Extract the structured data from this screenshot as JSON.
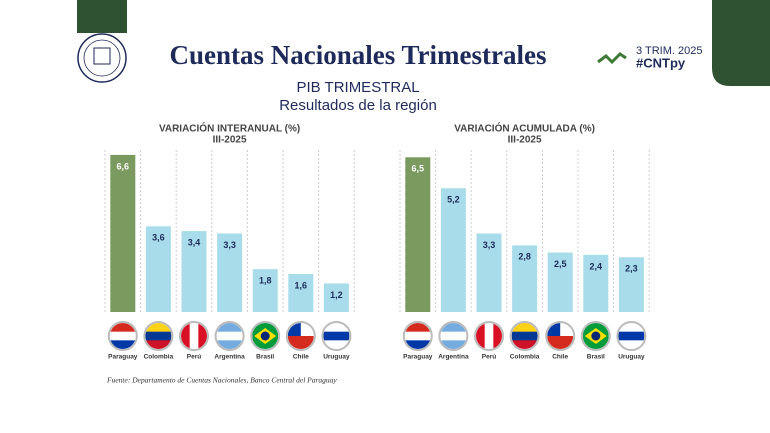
{
  "header": {
    "title": "Cuentas Nacionales Trimestrales",
    "subtitle": "PIB TRIMESTRAL",
    "subtitle2": "Resultados de la región",
    "period": "3 TRIM. 2025",
    "hashtag": "#CNTpy"
  },
  "source": "Fuente: Departamento de Cuentas Nacionales, Banco Central del Paraguay",
  "chart_data": [
    {
      "type": "bar",
      "title": "VARIACIÓN INTERANUAL (%)",
      "subtitle": "III-2025",
      "categories": [
        "Paraguay",
        "Colombia",
        "Perú",
        "Argentina",
        "Brasil",
        "Chile",
        "Uruguay"
      ],
      "values": [
        6.6,
        3.6,
        3.4,
        3.3,
        1.8,
        1.6,
        1.2
      ],
      "value_labels": [
        "6,6",
        "3,6",
        "3,4",
        "3,3",
        "1,8",
        "1,6",
        "1,2"
      ],
      "colors": [
        "#7a9a5f",
        "#a9dcea",
        "#a9dcea",
        "#a9dcea",
        "#a9dcea",
        "#a9dcea",
        "#a9dcea"
      ]
    },
    {
      "type": "bar",
      "title": "VARIACIÓN ACUMULADA (%)",
      "subtitle": "III-2025",
      "categories": [
        "Paraguay",
        "Argentina",
        "Perú",
        "Colombia",
        "Chile",
        "Brasil",
        "Uruguay"
      ],
      "values": [
        6.5,
        5.2,
        3.3,
        2.8,
        2.5,
        2.4,
        2.3
      ],
      "value_labels": [
        "6,5",
        "5,2",
        "3,3",
        "2,8",
        "2,5",
        "2,4",
        "2,3"
      ],
      "colors": [
        "#7a9a5f",
        "#a9dcea",
        "#a9dcea",
        "#a9dcea",
        "#a9dcea",
        "#a9dcea",
        "#a9dcea"
      ]
    }
  ]
}
